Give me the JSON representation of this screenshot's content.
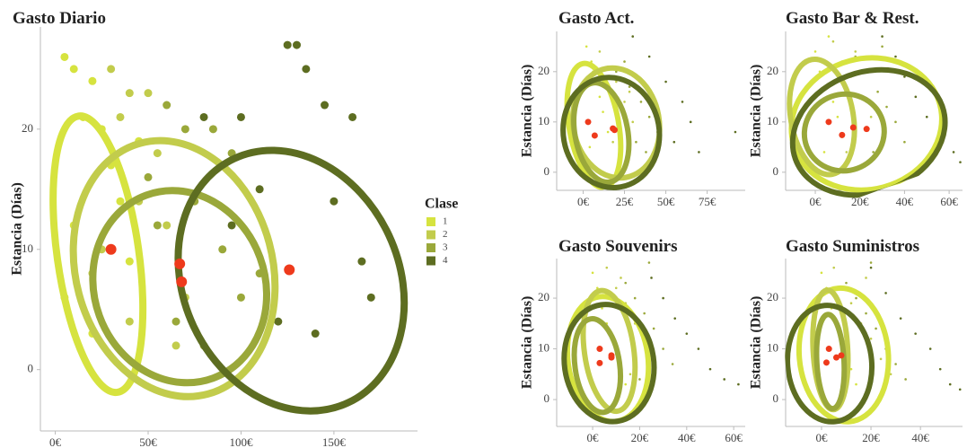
{
  "chart_data": [
    {
      "type": "scatter",
      "title": "Gasto Diario",
      "ylabel": "Estancia (Días)",
      "legend": true,
      "legend_title": "Clase",
      "xlim": [
        -8,
        195
      ],
      "ylim": [
        -5.1,
        28.5
      ],
      "xticks": [
        {
          "value": 0,
          "label": "0€"
        },
        {
          "value": 50,
          "label": "50€"
        },
        {
          "value": 100,
          "label": "100€"
        },
        {
          "value": 150,
          "label": "150€"
        }
      ],
      "yticks": [
        0,
        10,
        20
      ],
      "series": [
        {
          "name": "1",
          "color": "#d6e33f",
          "x": [
            5,
            10,
            20,
            15,
            25,
            30,
            35,
            10,
            40,
            5,
            20,
            45
          ],
          "values": [
            26,
            25,
            24,
            21,
            20,
            17,
            14,
            12,
            9,
            6,
            3,
            19
          ],
          "ellipse": {
            "center": [
              23,
              9.6
            ],
            "radii": [
              22,
              11.6
            ],
            "angle": -8
          }
        },
        {
          "name": "2",
          "color": "#c2cc4c",
          "x": [
            30,
            40,
            50,
            35,
            55,
            45,
            60,
            25,
            70,
            40,
            65,
            20
          ],
          "values": [
            25,
            23,
            23,
            21,
            18,
            14,
            12,
            10,
            6,
            4,
            2,
            8
          ],
          "ellipse": {
            "center": [
              64,
              8.4
            ],
            "radii": [
              53,
              10.8
            ],
            "angle": -15
          }
        },
        {
          "name": "3",
          "color": "#9aa83a",
          "x": [
            60,
            70,
            85,
            95,
            75,
            55,
            90,
            100,
            65,
            80,
            110,
            50
          ],
          "values": [
            22,
            20,
            20,
            18,
            14,
            12,
            10,
            6,
            4,
            2,
            8,
            16
          ],
          "ellipse": {
            "center": [
              67,
              6.9
            ],
            "radii": [
              46,
              8.1
            ],
            "angle": -20
          }
        },
        {
          "name": "4",
          "color": "#5d6d21",
          "x": [
            125,
            130,
            135,
            80,
            100,
            145,
            160,
            165,
            110,
            150,
            120,
            140,
            170,
            95
          ],
          "values": [
            27,
            27,
            25,
            21,
            21,
            22,
            21,
            9,
            15,
            14,
            4,
            3,
            6,
            12
          ],
          "ellipse": {
            "center": [
              127,
              7.4
            ],
            "radii": [
              58,
              11.2
            ],
            "angle": -25
          }
        }
      ],
      "centroids": {
        "color": "#ee3a1c",
        "x": [
          30,
          67,
          68,
          126
        ],
        "values": [
          10,
          8.8,
          7.3,
          8.3
        ]
      }
    },
    {
      "type": "scatter",
      "title": "Gasto Act.",
      "ylabel": "Estancia (Días)",
      "xlim": [
        -16,
        98
      ],
      "ylim": [
        -3.6,
        28
      ],
      "xticks": [
        {
          "value": 0,
          "label": "0€"
        },
        {
          "value": 25,
          "label": "25€"
        },
        {
          "value": 50,
          "label": "50€"
        },
        {
          "value": 75,
          "label": "75€"
        }
      ],
      "yticks": [
        0,
        10,
        20
      ],
      "series": [
        {
          "name": "1",
          "color": "#d6e33f",
          "x": [
            2,
            5,
            8,
            10,
            12,
            15,
            4,
            6
          ],
          "values": [
            25,
            22,
            18,
            15,
            12,
            8,
            5,
            20
          ],
          "ellipse": {
            "center": [
              6.5,
              9.3
            ],
            "radii": [
              15,
              12.5
            ],
            "angle": -10
          }
        },
        {
          "name": "2",
          "color": "#c2cc4c",
          "x": [
            10,
            15,
            20,
            25,
            30,
            18,
            22,
            28
          ],
          "values": [
            24,
            21,
            18,
            14,
            10,
            6,
            4,
            16
          ],
          "ellipse": {
            "center": [
              20,
              9.8
            ],
            "radii": [
              26,
              11
            ],
            "angle": -10
          }
        },
        {
          "name": "3",
          "color": "#9aa83a",
          "x": [
            20,
            28,
            35,
            40,
            45,
            32,
            38,
            25
          ],
          "values": [
            20,
            17,
            14,
            11,
            8,
            6,
            4,
            22
          ],
          "ellipse": {
            "center": [
              11,
              7.9
            ],
            "radii": [
              16,
              10
            ],
            "angle": -10
          }
        },
        {
          "name": "4",
          "color": "#5d6d21",
          "x": [
            30,
            40,
            50,
            60,
            65,
            55,
            70,
            92
          ],
          "values": [
            27,
            23,
            18,
            14,
            10,
            6,
            4,
            8
          ],
          "ellipse": {
            "center": [
              17,
              7.9
            ],
            "radii": [
              29,
              11
            ],
            "angle": -10
          }
        }
      ],
      "centroids": {
        "color": "#ee3a1c",
        "x": [
          3,
          7,
          18,
          19
        ],
        "values": [
          10,
          7.3,
          8.7,
          8.4
        ]
      }
    },
    {
      "type": "scatter",
      "title": "Gasto Bar & Rest.",
      "ylabel": "Estancia (Días)",
      "xlim": [
        -13.3,
        66
      ],
      "ylim": [
        -3.6,
        28
      ],
      "xticks": [
        {
          "value": 0,
          "label": "0€"
        },
        {
          "value": 20,
          "label": "20€"
        },
        {
          "value": 40,
          "label": "40€"
        },
        {
          "value": 60,
          "label": "60€"
        }
      ],
      "yticks": [
        0,
        10,
        20
      ],
      "series": [
        {
          "name": "1",
          "color": "#d6e33f",
          "x": [
            0,
            2,
            5,
            8,
            10,
            12,
            4,
            6
          ],
          "values": [
            24,
            20,
            17,
            14,
            11,
            7,
            4,
            27
          ],
          "ellipse": {
            "center": [
              23,
              9.6
            ],
            "radii": [
              34,
              13
            ],
            "angle": -15
          }
        },
        {
          "name": "2",
          "color": "#c2cc4c",
          "x": [
            8,
            12,
            16,
            20,
            25,
            30,
            14,
            18
          ],
          "values": [
            26,
            22,
            19,
            15,
            11,
            7,
            4,
            24
          ],
          "ellipse": {
            "center": [
              3,
              11
            ],
            "radii": [
              14,
              11.6
            ],
            "angle": -10
          }
        },
        {
          "name": "3",
          "color": "#9aa83a",
          "x": [
            18,
            22,
            28,
            32,
            36,
            40,
            26,
            30
          ],
          "values": [
            23,
            20,
            16,
            13,
            10,
            6,
            4,
            25
          ],
          "ellipse": {
            "center": [
              13,
              7.9
            ],
            "radii": [
              18,
              7.6
            ],
            "angle": -20
          }
        },
        {
          "name": "4",
          "color": "#5d6d21",
          "x": [
            30,
            36,
            40,
            45,
            50,
            55,
            62,
            65
          ],
          "values": [
            27,
            23,
            19,
            15,
            11,
            7,
            4,
            2
          ],
          "ellipse": {
            "center": [
              24,
              7.9
            ],
            "radii": [
              35,
              12
            ],
            "angle": -20
          }
        }
      ],
      "centroids": {
        "color": "#ee3a1c",
        "x": [
          6,
          12,
          17,
          23
        ],
        "values": [
          10,
          7.4,
          8.9,
          8.6
        ]
      }
    },
    {
      "type": "scatter",
      "title": "Gasto Souvenirs",
      "ylabel": "Estancia (Días)",
      "xlim": [
        -15.3,
        64.9
      ],
      "ylim": [
        -5.3,
        27.8
      ],
      "xticks": [
        {
          "value": 0,
          "label": "0€"
        },
        {
          "value": 20,
          "label": "20€"
        },
        {
          "value": 40,
          "label": "40€"
        },
        {
          "value": 60,
          "label": "60€"
        }
      ],
      "yticks": [
        0,
        10,
        20
      ],
      "series": [
        {
          "name": "1",
          "color": "#d6e33f",
          "x": [
            0,
            2,
            4,
            6,
            8,
            10,
            12,
            14
          ],
          "values": [
            25,
            22,
            18,
            15,
            12,
            9,
            6,
            3
          ],
          "ellipse": {
            "center": [
              6.5,
              8
            ],
            "radii": [
              17,
              12.4
            ],
            "angle": -8
          }
        },
        {
          "name": "2",
          "color": "#c2cc4c",
          "x": [
            6,
            10,
            14,
            18,
            22,
            26,
            16,
            12
          ],
          "values": [
            26,
            22,
            19,
            15,
            12,
            8,
            5,
            24
          ],
          "ellipse": {
            "center": [
              7,
              9.6
            ],
            "radii": [
              10.5,
              12
            ],
            "angle": -8
          }
        },
        {
          "name": "3",
          "color": "#9aa83a",
          "x": [
            14,
            18,
            22,
            26,
            30,
            34,
            20,
            24
          ],
          "values": [
            23,
            20,
            17,
            14,
            10,
            7,
            4,
            27
          ],
          "ellipse": {
            "center": [
              2,
              6.7
            ],
            "radii": [
              9.5,
              9.3
            ],
            "angle": -8
          }
        },
        {
          "name": "4",
          "color": "#5d6d21",
          "x": [
            25,
            30,
            35,
            40,
            45,
            50,
            56,
            62
          ],
          "values": [
            24,
            20,
            16,
            13,
            10,
            6,
            4,
            3
          ],
          "ellipse": {
            "center": [
              7,
              7.2
            ],
            "radii": [
              19,
              11.6
            ],
            "angle": -8
          }
        }
      ],
      "centroids": {
        "color": "#ee3a1c",
        "x": [
          3,
          3,
          8,
          8
        ],
        "values": [
          10,
          7.2,
          8.7,
          8.3
        ]
      }
    },
    {
      "type": "scatter",
      "title": "Gasto Suministros",
      "ylabel": "Estancia (Días)",
      "xlim": [
        -14.5,
        57
      ],
      "ylim": [
        -5.3,
        27.8
      ],
      "xticks": [
        {
          "value": 0,
          "label": "0€"
        },
        {
          "value": 20,
          "label": "20€"
        },
        {
          "value": 40,
          "label": "40€"
        }
      ],
      "yticks": [
        0,
        10,
        20
      ],
      "series": [
        {
          "name": "1",
          "color": "#d6e33f",
          "x": [
            0,
            2,
            4,
            6,
            8,
            10,
            12,
            14
          ],
          "values": [
            25,
            22,
            18,
            15,
            12,
            9,
            6,
            3
          ],
          "ellipse": {
            "center": [
              9,
              8.8
            ],
            "radii": [
              18,
              13.2
            ],
            "angle": -5
          }
        },
        {
          "name": "2",
          "color": "#c2cc4c",
          "x": [
            5,
            8,
            12,
            16,
            20,
            24,
            28,
            18
          ],
          "values": [
            26,
            22,
            19,
            15,
            12,
            8,
            5,
            24
          ],
          "ellipse": {
            "center": [
              3.6,
              9.8
            ],
            "radii": [
              7,
              11.8
            ],
            "angle": -3
          }
        },
        {
          "name": "3",
          "color": "#9aa83a",
          "x": [
            10,
            14,
            18,
            22,
            26,
            30,
            34,
            20
          ],
          "values": [
            23,
            20,
            17,
            14,
            10,
            7,
            4,
            27
          ],
          "ellipse": {
            "center": [
              3.6,
              7.5
            ],
            "radii": [
              5.5,
              9.3
            ],
            "angle": -3
          }
        },
        {
          "name": "4",
          "color": "#5d6d21",
          "x": [
            20,
            26,
            32,
            38,
            44,
            48,
            52,
            56
          ],
          "values": [
            26,
            21,
            16,
            13,
            10,
            6,
            3,
            2
          ],
          "ellipse": {
            "center": [
              3.3,
              7.1
            ],
            "radii": [
              17,
              11.5
            ],
            "angle": -5
          }
        }
      ],
      "centroids": {
        "color": "#ee3a1c",
        "x": [
          3,
          2,
          6,
          8
        ],
        "values": [
          10,
          7.3,
          8.3,
          8.7
        ]
      }
    }
  ]
}
